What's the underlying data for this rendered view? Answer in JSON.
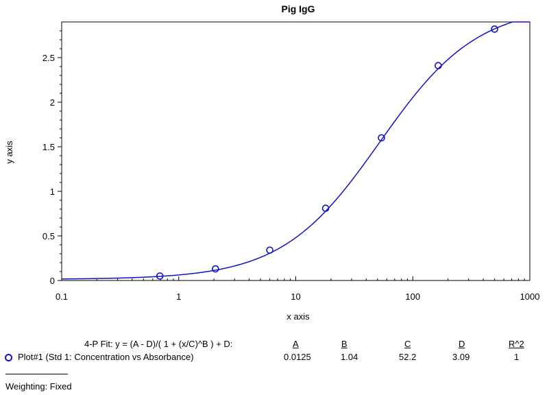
{
  "chart_data": {
    "type": "scatter",
    "title": "Pig IgG",
    "xlabel": "x axis",
    "ylabel": "y axis",
    "xscale": "log",
    "xlim": [
      0.1,
      1000
    ],
    "ylim": [
      0,
      2.9
    ],
    "x_ticks": [
      "0.1",
      "1",
      "10",
      "100",
      "1000"
    ],
    "y_ticks": [
      "0",
      "0.5",
      "1",
      "1.5",
      "2",
      "2.5"
    ],
    "grid": false,
    "series": [
      {
        "name": "Plot#1 (Std 1: Concentration vs Absorbance)",
        "x": [
          0.69,
          2.06,
          6.0,
          18.0,
          54.0,
          165.0,
          500.0
        ],
        "y": [
          0.05,
          0.13,
          0.34,
          0.81,
          1.6,
          2.41,
          2.82
        ],
        "color": "#1010c8"
      }
    ],
    "fit": {
      "A": 0.0125,
      "B": 1.04,
      "C": 52.2,
      "D": 3.09,
      "color": "#1010c8"
    }
  },
  "fit_table": {
    "equation": "4-P Fit: y = (A - D)/( 1 + (x/C)^B ) + D:",
    "headers": [
      "A",
      "B",
      "C",
      "D",
      "R^2"
    ],
    "row_label": "Plot#1 (Std 1: Concentration vs Absorbance)",
    "values": [
      "0.0125",
      "1.04",
      "52.2",
      "3.09",
      "1"
    ]
  },
  "weighting": "Weighting: Fixed"
}
